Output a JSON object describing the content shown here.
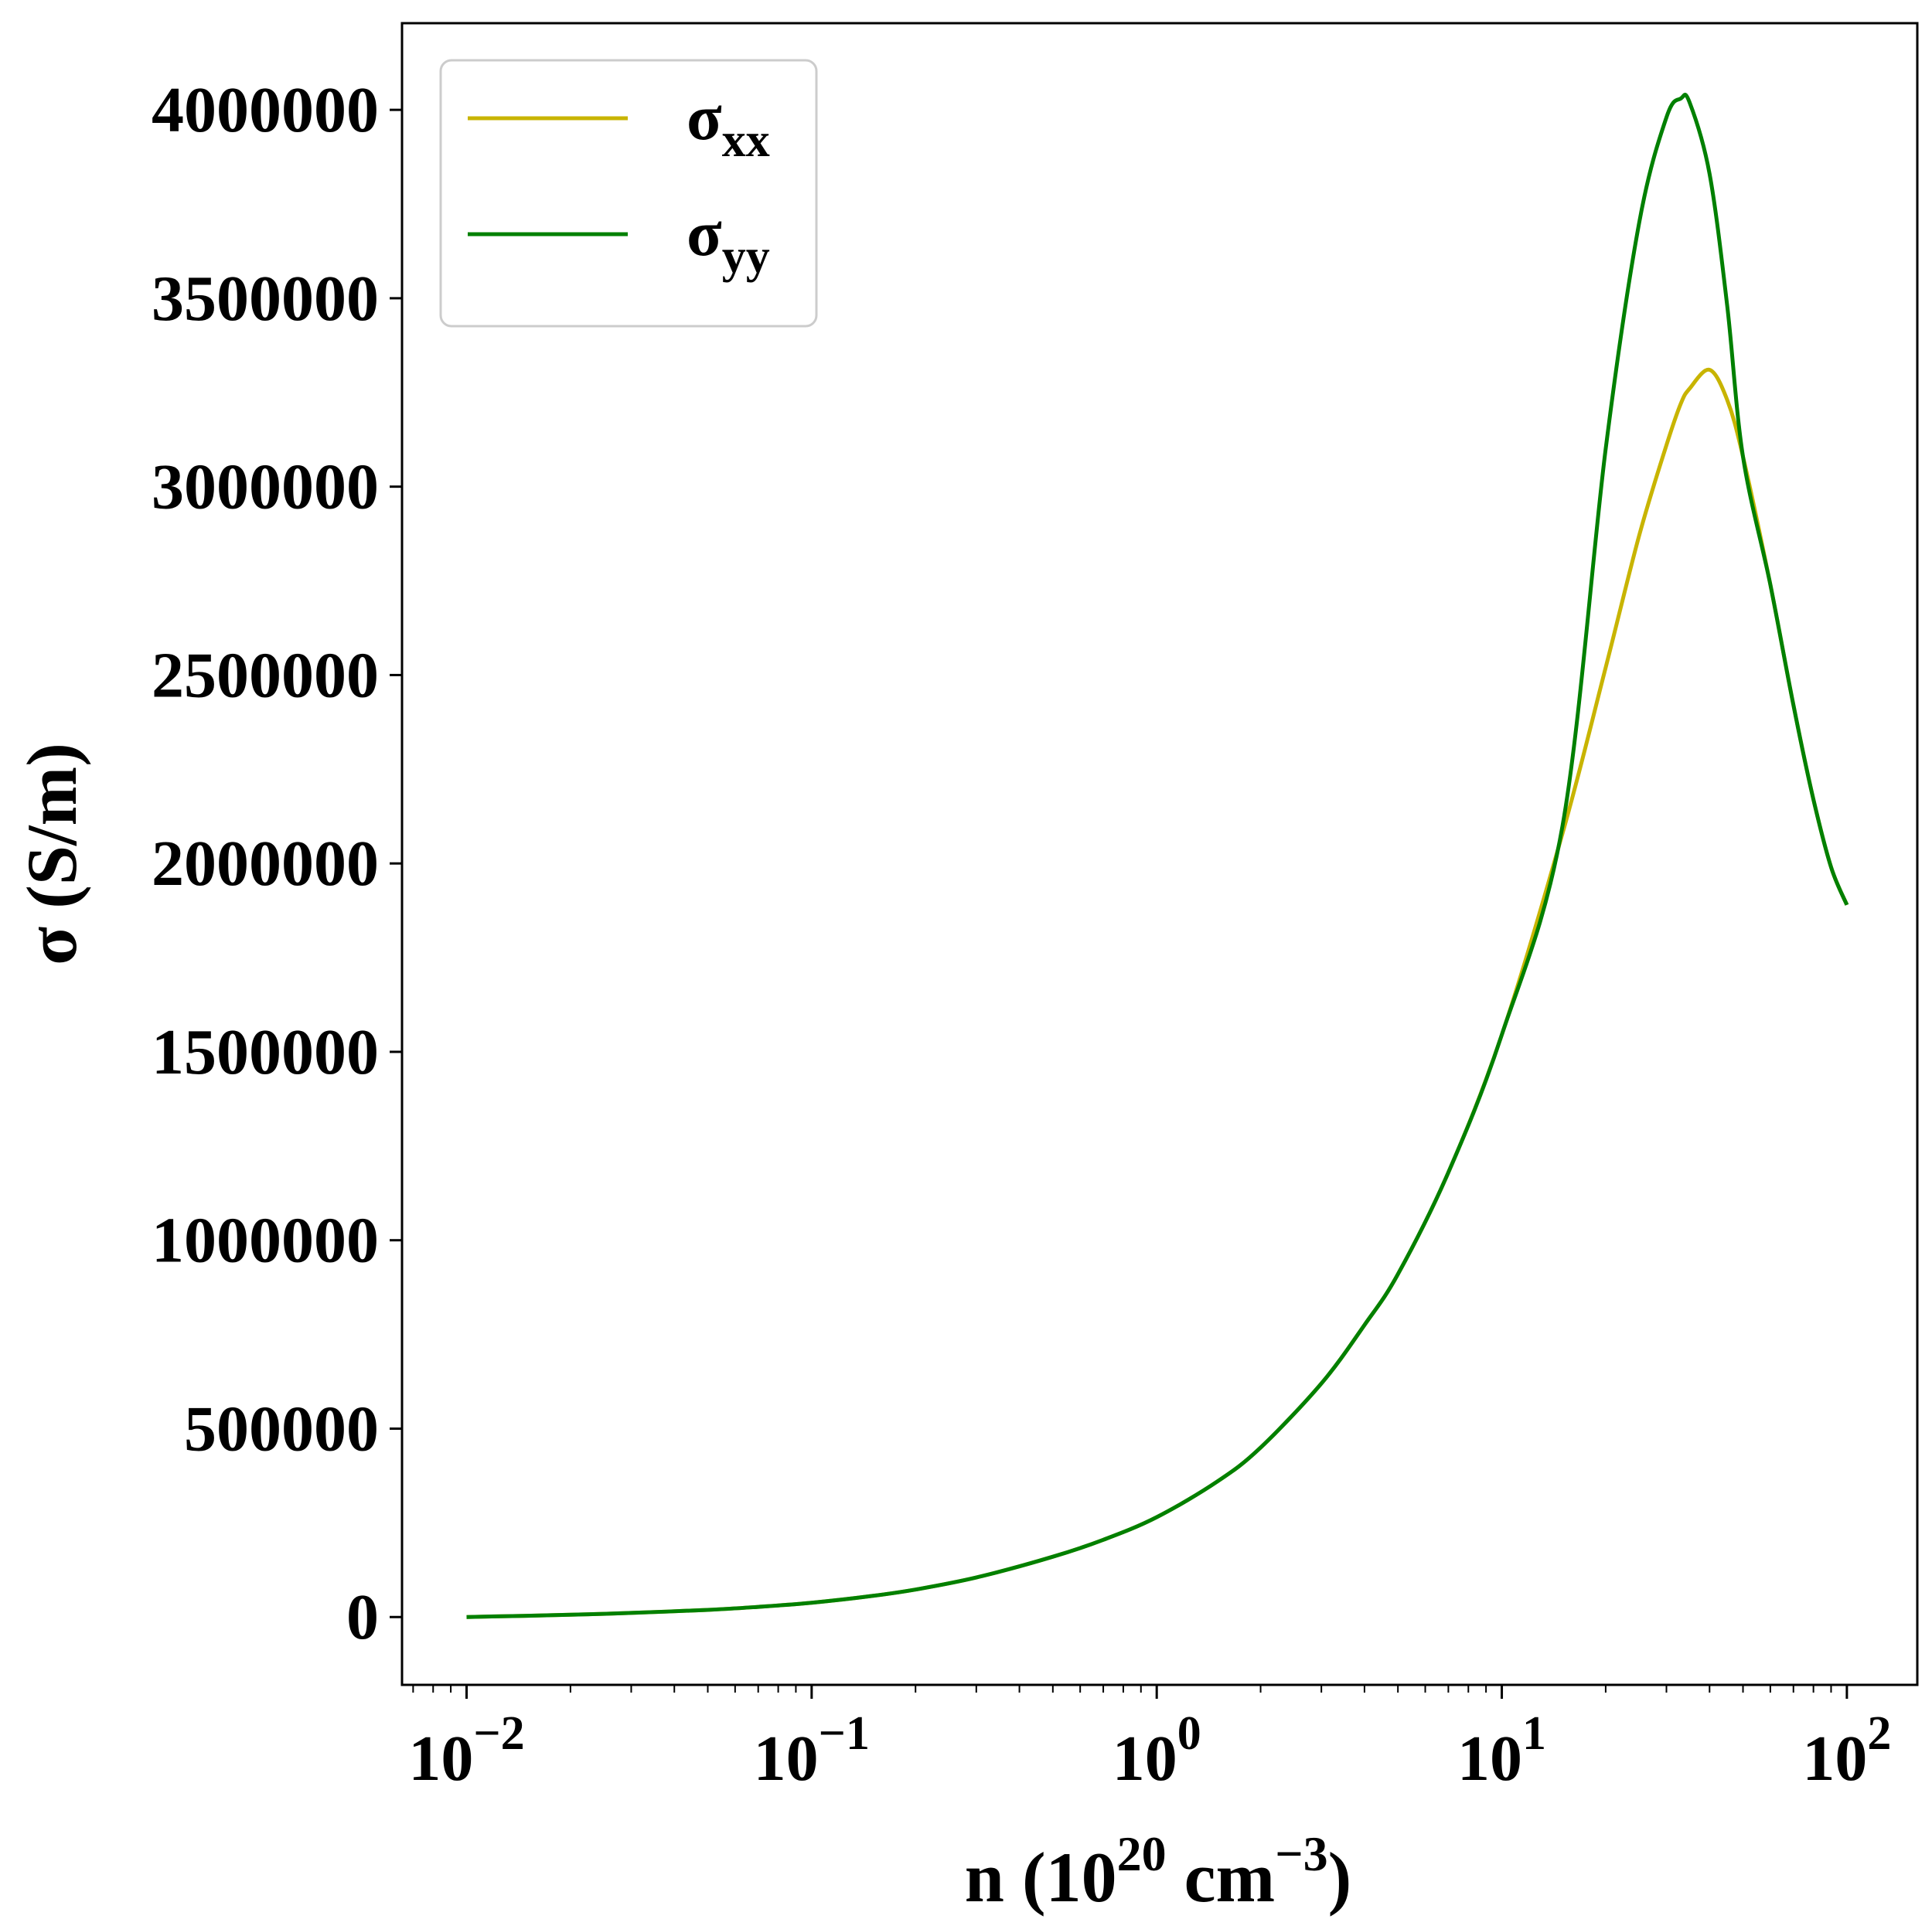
{
  "chart_data": {
    "type": "line",
    "xscale": "log",
    "xlim": [
      0.0065,
      160
    ],
    "ylim": [
      -180000,
      4230000
    ],
    "xlabel": {
      "base": "n (10",
      "sup1": "20",
      "mid": " cm",
      "sup2": "−3",
      "end": ")"
    },
    "ylabel": "σ (S/m)",
    "grid": false,
    "legend_position": "top-left",
    "yticks": [
      0,
      500000,
      1000000,
      1500000,
      2000000,
      2500000,
      3000000,
      3500000,
      4000000
    ],
    "ytick_labels": [
      "0",
      "500000",
      "1000000",
      "1500000",
      "2000000",
      "2500000",
      "3000000",
      "3500000",
      "4000000"
    ],
    "xticks": [
      {
        "value": 0.01,
        "base": "10",
        "exp": "−2"
      },
      {
        "value": 0.1,
        "base": "10",
        "exp": "−1"
      },
      {
        "value": 1,
        "base": "10",
        "exp": "0"
      },
      {
        "value": 10,
        "base": "10",
        "exp": "1"
      },
      {
        "value": 100,
        "base": "10",
        "exp": "2"
      }
    ],
    "x": [
      0.01,
      0.02,
      0.03,
      0.05,
      0.07,
      0.1,
      0.15,
      0.2,
      0.3,
      0.5,
      0.7,
      1.0,
      1.5,
      2.0,
      3.0,
      4.0,
      5.0,
      7.0,
      10,
      15,
      20,
      25,
      30,
      33,
      35,
      40,
      45,
      50,
      60,
      70,
      80,
      90,
      100
    ],
    "series": [
      {
        "name": {
          "base": "σ",
          "sub": "xx"
        },
        "color": "#c8b400",
        "values": [
          0,
          6000,
          11000,
          19000,
          27000,
          38000,
          56000,
          73000,
          105000,
          160000,
          205000,
          265000,
          360000,
          450000,
          620000,
          775000,
          910000,
          1180000,
          1545000,
          2080000,
          2520000,
          2870000,
          3110000,
          3220000,
          3260000,
          3310000,
          3230000,
          3080000,
          2740000,
          2420000,
          2170000,
          1990000,
          1890000
        ]
      },
      {
        "name": {
          "base": "σ",
          "sub": "yy"
        },
        "color": "#008000",
        "values": [
          0,
          6000,
          11000,
          19000,
          27000,
          38000,
          56000,
          73000,
          105000,
          160000,
          205000,
          265000,
          360000,
          450000,
          620000,
          775000,
          910000,
          1180000,
          1545000,
          2100000,
          3100000,
          3700000,
          3980000,
          4030000,
          4020000,
          3830000,
          3480000,
          3080000,
          2740000,
          2420000,
          2170000,
          1990000,
          1890000
        ]
      }
    ]
  }
}
